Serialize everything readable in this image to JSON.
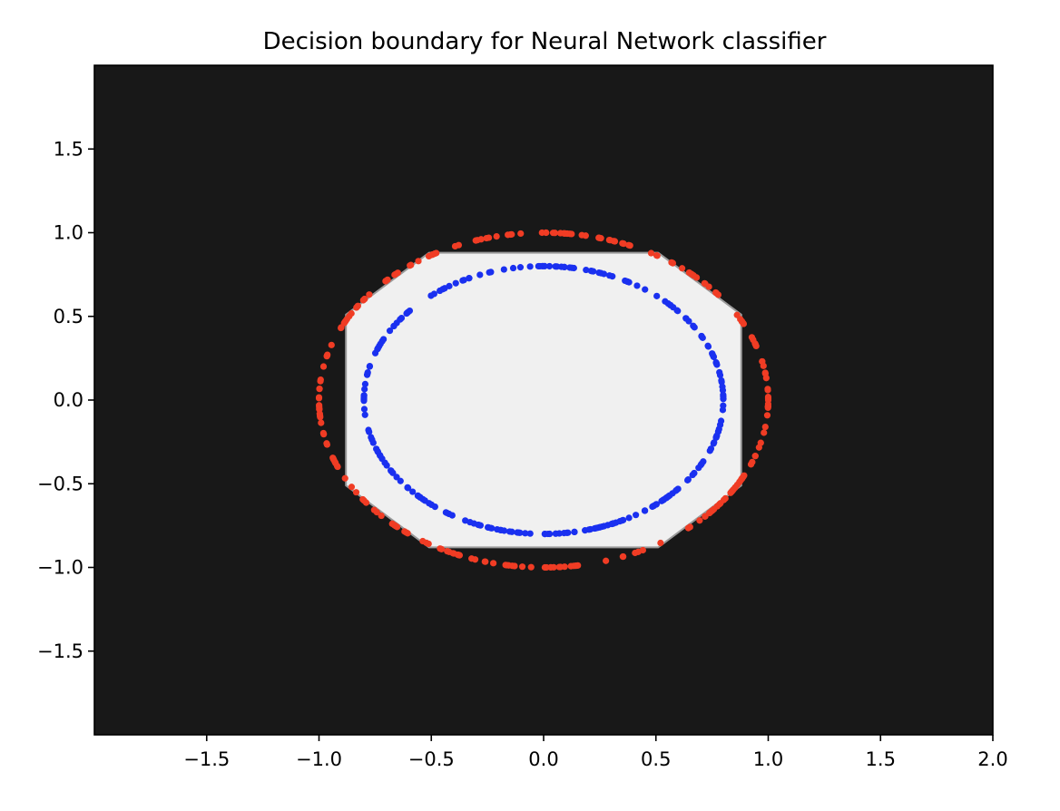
{
  "chart_data": {
    "type": "scatter",
    "title": "Decision boundary for Neural Network classifier",
    "xlabel": "",
    "ylabel": "",
    "xlim": [
      -2.0,
      2.0
    ],
    "ylim": [
      -2.0,
      2.0
    ],
    "xticks": [
      -1.5,
      -1.0,
      -0.5,
      0.0,
      0.5,
      1.0,
      1.5,
      2.0
    ],
    "yticks": [
      -1.5,
      -1.0,
      -0.5,
      0.0,
      0.5,
      1.0,
      1.5
    ],
    "xtick_labels": [
      "−1.5",
      "−1.0",
      "−0.5",
      "0.0",
      "0.5",
      "1.0",
      "1.5",
      "2.0"
    ],
    "ytick_labels": [
      "−1.5",
      "−1.0",
      "−0.5",
      "0.0",
      "0.5",
      "1.0",
      "1.5"
    ],
    "grid": false,
    "legend": "none",
    "background": {
      "outside_class_color": "#181818",
      "inside_class_color": "#f0f0f0",
      "inside_region": {
        "shape": "octagon",
        "center": [
          0.0,
          0.0
        ],
        "half_width": 0.88,
        "half_height": 0.88
      }
    },
    "series": [
      {
        "color": "#f03c24",
        "shape": "circle",
        "center": [
          0.0,
          0.0
        ],
        "radius": 1.0,
        "n_points": 250
      },
      {
        "color": "#1a30f0",
        "shape": "circle",
        "center": [
          0.0,
          0.0
        ],
        "radius": 0.8,
        "n_points": 250
      }
    ]
  }
}
